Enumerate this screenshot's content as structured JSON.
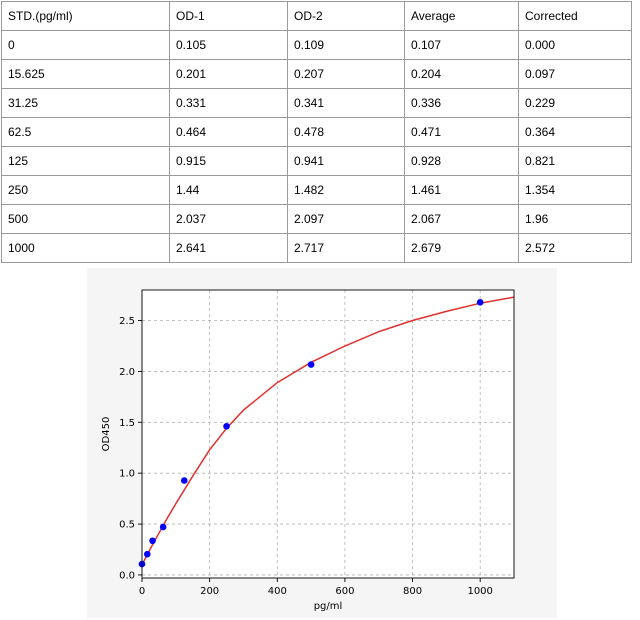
{
  "table": {
    "headers": [
      "STD.(pg/ml)",
      "OD-1",
      "OD-2",
      "Average",
      "Corrected"
    ],
    "rows": [
      [
        "0",
        "0.105",
        "0.109",
        "0.107",
        "0.000"
      ],
      [
        "15.625",
        "0.201",
        "0.207",
        "0.204",
        "0.097"
      ],
      [
        "31.25",
        "0.331",
        "0.341",
        "0.336",
        "0.229"
      ],
      [
        "62.5",
        "0.464",
        "0.478",
        "0.471",
        "0.364"
      ],
      [
        "125",
        "0.915",
        "0.941",
        "0.928",
        "0.821"
      ],
      [
        "250",
        "1.44",
        "1.482",
        "1.461",
        "1.354"
      ],
      [
        "500",
        "2.037",
        "2.097",
        "2.067",
        "1.96"
      ],
      [
        "1000",
        "2.641",
        "2.717",
        "2.679",
        "2.572"
      ]
    ]
  },
  "chart_data": {
    "type": "scatter",
    "title": "",
    "xlabel": "pg/ml",
    "ylabel": "OD450",
    "xlim": [
      0,
      1100
    ],
    "ylim": [
      -0.03,
      2.8
    ],
    "x_ticks": [
      0,
      200,
      400,
      600,
      800,
      1000
    ],
    "y_ticks": [
      0.0,
      0.5,
      1.0,
      1.5,
      2.0,
      2.5
    ],
    "x_tick_labels": [
      "0",
      "200",
      "400",
      "600",
      "800",
      "1000"
    ],
    "y_tick_labels": [
      "0.0",
      "0.5",
      "1.0",
      "1.5",
      "2.0",
      "2.5"
    ],
    "grid": true,
    "points": {
      "x": [
        0,
        15.625,
        31.25,
        62.5,
        125,
        250,
        500,
        1000
      ],
      "y": [
        0.107,
        0.204,
        0.336,
        0.471,
        0.928,
        1.461,
        2.067,
        2.679
      ]
    },
    "fit_curve": {
      "x": [
        0,
        25,
        50,
        75,
        100,
        150,
        200,
        250,
        300,
        400,
        500,
        600,
        700,
        800,
        900,
        1000,
        1100
      ],
      "y": [
        0.1,
        0.26,
        0.41,
        0.56,
        0.7,
        0.97,
        1.23,
        1.44,
        1.62,
        1.89,
        2.09,
        2.25,
        2.39,
        2.5,
        2.59,
        2.67,
        2.73
      ]
    },
    "colors": {
      "points": "#0000ff",
      "fit_curve": "#e03030",
      "plot_background": "#ffffff",
      "figure_background": "#f5f5f5",
      "grid": "#b0b0b0"
    }
  }
}
